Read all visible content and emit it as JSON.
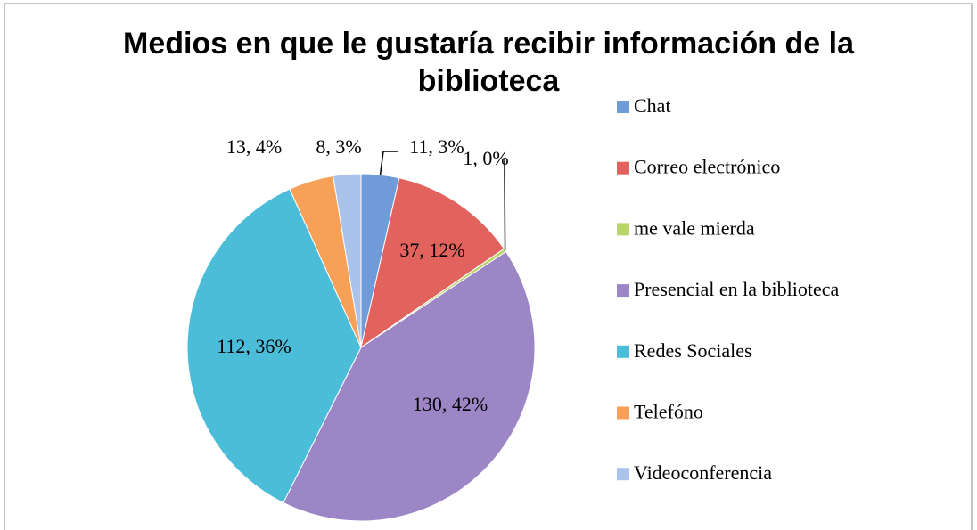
{
  "chart_data": {
    "type": "pie",
    "title": "Medios en que le gustaría recibir información de la biblioteca",
    "categories": [
      "Chat",
      "Correo electrónico",
      "me vale mierda",
      "Presencial en la biblioteca",
      "Redes Sociales",
      "Telefóno",
      "Videoconferencia"
    ],
    "values": [
      11,
      37,
      1,
      130,
      112,
      13,
      8
    ],
    "value_labels": [
      "11, 3%",
      "37, 12%",
      "1, 0%",
      "130, 42%",
      "112, 36%",
      "13, 4%",
      "8, 3%"
    ],
    "colors": [
      "#6f9bd8",
      "#e2625e",
      "#b8d46c",
      "#9c86c6",
      "#4cbdd8",
      "#f6a157",
      "#abc2ea"
    ],
    "legend": "right"
  }
}
